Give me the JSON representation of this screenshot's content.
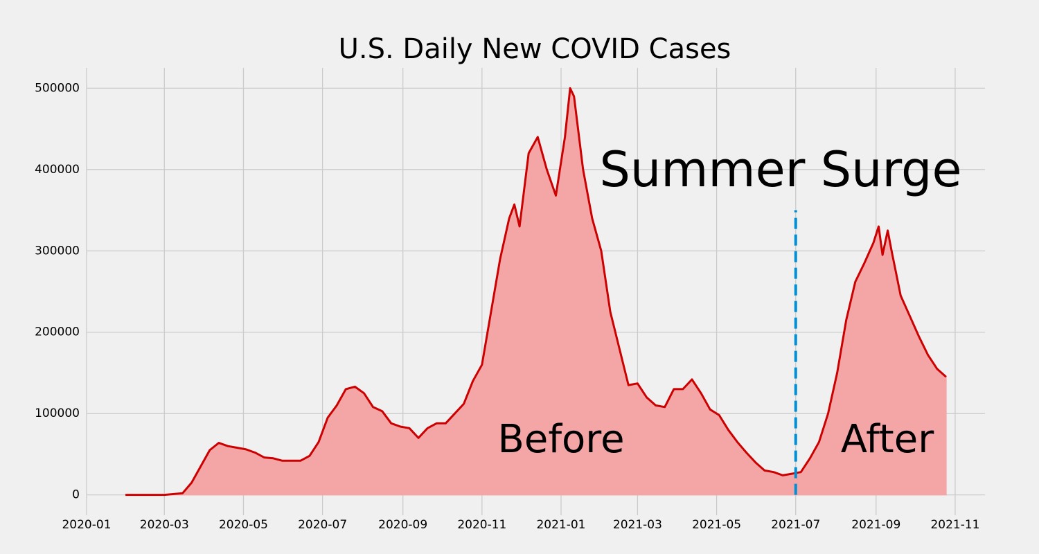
{
  "chart_data": {
    "type": "area",
    "title": "U.S. Daily New COVID Cases",
    "color": "#cc0000",
    "fill_color": "#f4a6a6",
    "grid": true,
    "x": [
      "2020-01-31",
      "2020-03-01",
      "2020-03-15",
      "2020-03-22",
      "2020-03-29",
      "2020-04-05",
      "2020-04-12",
      "2020-04-19",
      "2020-04-26",
      "2020-05-03",
      "2020-05-10",
      "2020-05-17",
      "2020-05-24",
      "2020-05-31",
      "2020-06-07",
      "2020-06-14",
      "2020-06-21",
      "2020-06-28",
      "2020-07-05",
      "2020-07-12",
      "2020-07-19",
      "2020-07-26",
      "2020-08-02",
      "2020-08-09",
      "2020-08-16",
      "2020-08-23",
      "2020-08-30",
      "2020-09-06",
      "2020-09-13",
      "2020-09-20",
      "2020-09-27",
      "2020-10-04",
      "2020-10-11",
      "2020-10-18",
      "2020-10-25",
      "2020-11-01",
      "2020-11-08",
      "2020-11-15",
      "2020-11-22",
      "2020-11-26",
      "2020-11-30",
      "2020-12-07",
      "2020-12-14",
      "2020-12-21",
      "2020-12-28",
      "2021-01-04",
      "2021-01-08",
      "2021-01-11",
      "2021-01-18",
      "2021-01-25",
      "2021-02-01",
      "2021-02-08",
      "2021-02-15",
      "2021-02-22",
      "2021-03-01",
      "2021-03-08",
      "2021-03-15",
      "2021-03-22",
      "2021-03-29",
      "2021-04-05",
      "2021-04-12",
      "2021-04-19",
      "2021-04-26",
      "2021-05-03",
      "2021-05-10",
      "2021-05-17",
      "2021-05-24",
      "2021-05-31",
      "2021-06-07",
      "2021-06-14",
      "2021-06-21",
      "2021-06-28",
      "2021-07-05",
      "2021-07-12",
      "2021-07-19",
      "2021-07-26",
      "2021-08-02",
      "2021-08-09",
      "2021-08-16",
      "2021-08-23",
      "2021-08-30",
      "2021-09-03",
      "2021-09-06",
      "2021-09-10",
      "2021-09-13",
      "2021-09-20",
      "2021-09-27",
      "2021-10-04",
      "2021-10-11",
      "2021-10-18",
      "2021-10-25"
    ],
    "values": [
      0,
      0,
      2000,
      15000,
      35000,
      55000,
      64000,
      60000,
      58000,
      56000,
      52000,
      46000,
      45000,
      42000,
      42000,
      42000,
      48000,
      65000,
      95000,
      110000,
      130000,
      133000,
      125000,
      108000,
      103000,
      88000,
      84000,
      82000,
      70000,
      82000,
      88000,
      88000,
      100000,
      112000,
      140000,
      160000,
      225000,
      290000,
      340000,
      357000,
      330000,
      420000,
      440000,
      400000,
      368000,
      440000,
      500000,
      490000,
      400000,
      340000,
      300000,
      225000,
      180000,
      135000,
      137000,
      120000,
      110000,
      108000,
      130000,
      130000,
      142000,
      125000,
      105000,
      98000,
      80000,
      65000,
      52000,
      40000,
      30000,
      28000,
      24000,
      26000,
      28000,
      45000,
      65000,
      100000,
      150000,
      215000,
      262000,
      285000,
      310000,
      330000,
      295000,
      325000,
      300000,
      245000,
      220000,
      195000,
      172000,
      155000,
      145000
    ],
    "xlim": [
      "2020-01-01",
      "2021-11-24"
    ],
    "xticks": [
      "2020-01",
      "2020-03",
      "2020-05",
      "2020-07",
      "2020-09",
      "2020-11",
      "2021-01",
      "2021-03",
      "2021-05",
      "2021-07",
      "2021-09",
      "2021-11"
    ],
    "ylim": [
      -25000,
      525000
    ],
    "yticks": [
      0,
      100000,
      200000,
      300000,
      400000,
      500000
    ],
    "vline": {
      "x": "2021-07",
      "ymax": 350000,
      "color": "#008fd5"
    },
    "annotations": [
      "Summer Surge",
      "Before",
      "After"
    ]
  }
}
